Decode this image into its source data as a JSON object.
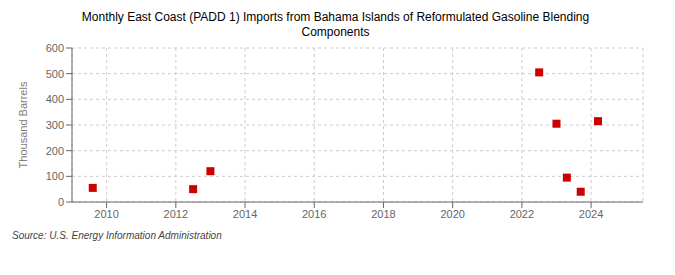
{
  "chart_data": {
    "type": "scatter",
    "title": "Monthly East Coast (PADD 1) Imports from Bahama Islands of Reformulated Gasoline Blending\nComponents",
    "ylabel": "Thousand Barrels",
    "annotation": "Source: U.S. Energy Information Administration",
    "x": [
      2009.6,
      2012.5,
      2013.0,
      2022.5,
      2023.0,
      2023.3,
      2023.7,
      2024.2
    ],
    "values": [
      55,
      50,
      120,
      505,
      305,
      95,
      40,
      315
    ],
    "color": "#cc0000",
    "marker": "square",
    "xlim": [
      2009,
      2025.5
    ],
    "ylim": [
      0,
      600
    ],
    "xticks": [
      2010,
      2012,
      2014,
      2016,
      2018,
      2020,
      2022,
      2024
    ],
    "yticks": [
      0,
      100,
      200,
      300,
      400,
      500,
      600
    ],
    "grid": true
  }
}
